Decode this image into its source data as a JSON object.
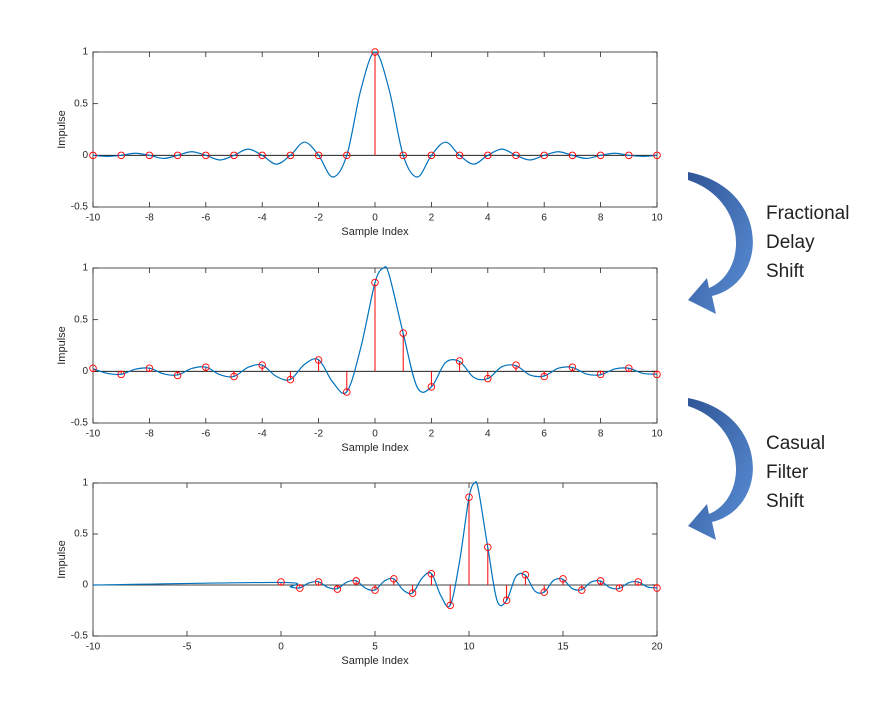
{
  "chart_data": [
    {
      "type": "stem",
      "xlabel": "Sample Index",
      "ylabel": "Impulse",
      "xlim": [
        -10,
        10
      ],
      "ylim": [
        -0.5,
        1
      ],
      "xticks": [
        -10,
        -8,
        -6,
        -4,
        -2,
        0,
        2,
        4,
        6,
        8,
        10
      ],
      "yticks": [
        -0.5,
        0,
        0.5,
        1
      ],
      "series": [
        {
          "type": "stem",
          "color": "#ff0000",
          "x": [
            -10,
            -9,
            -8,
            -7,
            -6,
            -5,
            -4,
            -3,
            -2,
            -1,
            0,
            1,
            2,
            3,
            4,
            5,
            6,
            7,
            8,
            9,
            10
          ],
          "values": [
            0,
            0,
            0,
            0,
            0,
            0,
            0,
            0,
            0,
            0,
            1,
            0,
            0,
            0,
            0,
            0,
            0,
            0,
            0,
            0,
            0
          ]
        },
        {
          "type": "line",
          "color": "#0072bd",
          "x": [
            -10,
            -9.5,
            -9,
            -8.5,
            -8,
            -7.5,
            -7,
            -6.5,
            -6,
            -5.5,
            -5,
            -4.5,
            -4,
            -3.5,
            -3,
            -2.5,
            -2,
            -1.5,
            -1,
            -0.5,
            0,
            0.5,
            1,
            1.5,
            2,
            2.5,
            3,
            3.5,
            4,
            4.5,
            5,
            5.5,
            6,
            6.5,
            7,
            7.5,
            8,
            8.5,
            9,
            9.5,
            10
          ],
          "values": [
            0,
            -0.01,
            0,
            0.02,
            0,
            -0.03,
            0,
            0.035,
            0,
            -0.045,
            0,
            0.06,
            0,
            -0.085,
            0,
            0.127,
            0,
            -0.21,
            0,
            0.637,
            1,
            0.637,
            0,
            -0.21,
            0,
            0.127,
            0,
            -0.085,
            0,
            0.06,
            0,
            -0.045,
            0,
            0.035,
            0,
            -0.03,
            0,
            0.02,
            0,
            -0.01,
            0
          ]
        }
      ]
    },
    {
      "type": "stem",
      "xlabel": "Sample Index",
      "ylabel": "Impulse",
      "xlim": [
        -10,
        10
      ],
      "ylim": [
        -0.5,
        1
      ],
      "xticks": [
        -10,
        -8,
        -6,
        -4,
        -2,
        0,
        2,
        4,
        6,
        8,
        10
      ],
      "yticks": [
        -0.5,
        0,
        0.5,
        1
      ],
      "series": [
        {
          "type": "stem",
          "color": "#ff0000",
          "x": [
            -10,
            -9,
            -8,
            -7,
            -6,
            -5,
            -4,
            -3,
            -2,
            -1,
            0,
            1,
            2,
            3,
            4,
            5,
            6,
            7,
            8,
            9,
            10
          ],
          "values": [
            0.03,
            -0.03,
            0.03,
            -0.04,
            0.04,
            -0.05,
            0.06,
            -0.08,
            0.11,
            -0.2,
            0.86,
            0.37,
            -0.15,
            0.1,
            -0.07,
            0.06,
            -0.05,
            0.04,
            -0.03,
            0.03,
            -0.03
          ]
        },
        {
          "type": "line",
          "color": "#0072bd",
          "x": [
            -10,
            -9.5,
            -9,
            -8.5,
            -8,
            -7.5,
            -7,
            -6.5,
            -6,
            -5.5,
            -5,
            -4.5,
            -4,
            -3.5,
            -3,
            -2.5,
            -2,
            -1.5,
            -1,
            -0.5,
            0,
            0.3,
            0.5,
            1,
            1.5,
            2,
            2.5,
            3,
            3.5,
            4,
            4.5,
            5,
            5.5,
            6,
            6.5,
            7,
            7.5,
            8,
            8.5,
            9,
            9.5,
            10
          ],
          "values": [
            0.025,
            -0.019,
            -0.028,
            0.021,
            0.031,
            -0.024,
            -0.035,
            0.028,
            0.041,
            -0.032,
            -0.049,
            0.039,
            0.06,
            -0.049,
            -0.078,
            0.067,
            0.112,
            -0.104,
            -0.198,
            0.234,
            0.858,
            1,
            0.935,
            0.368,
            -0.156,
            -0.151,
            0.085,
            0.095,
            -0.058,
            -0.07,
            0.045,
            0.055,
            -0.036,
            -0.045,
            0.03,
            0.038,
            -0.026,
            -0.033,
            0.023,
            0.03,
            -0.02,
            -0.027
          ]
        }
      ]
    },
    {
      "type": "stem",
      "xlabel": "Sample Index",
      "ylabel": "Impulse",
      "xlim": [
        -10,
        20
      ],
      "ylim": [
        -0.5,
        1
      ],
      "xticks": [
        -10,
        -5,
        0,
        5,
        10,
        15,
        20
      ],
      "yticks": [
        -0.5,
        0,
        0.5,
        1
      ],
      "series": [
        {
          "type": "stem",
          "color": "#ff0000",
          "x": [
            0,
            1,
            2,
            3,
            4,
            5,
            6,
            7,
            8,
            9,
            10,
            11,
            12,
            13,
            14,
            15,
            16,
            17,
            18,
            19,
            20
          ],
          "values": [
            0.03,
            -0.03,
            0.03,
            -0.04,
            0.04,
            -0.05,
            0.06,
            -0.08,
            0.11,
            -0.2,
            0.86,
            0.37,
            -0.15,
            0.1,
            -0.07,
            0.06,
            -0.05,
            0.04,
            -0.03,
            0.03,
            -0.03
          ]
        },
        {
          "type": "line",
          "color": "#0072bd",
          "x": [
            -10,
            0,
            0.5,
            1,
            1.5,
            2,
            2.5,
            3,
            3.5,
            4,
            4.5,
            5,
            5.5,
            6,
            6.5,
            7,
            7.5,
            8,
            8.5,
            9,
            9.5,
            10,
            10.3,
            10.5,
            11,
            11.5,
            12,
            12.5,
            13,
            13.5,
            14,
            14.5,
            15,
            15.5,
            16,
            16.5,
            17,
            17.5,
            18,
            18.5,
            19,
            19.5,
            20
          ],
          "values": [
            0,
            0.025,
            -0.019,
            -0.028,
            0.021,
            0.031,
            -0.024,
            -0.035,
            0.028,
            0.041,
            -0.032,
            -0.049,
            0.039,
            0.06,
            -0.049,
            -0.078,
            0.067,
            0.112,
            -0.104,
            -0.198,
            0.234,
            0.858,
            1,
            0.935,
            0.368,
            -0.156,
            -0.151,
            0.085,
            0.095,
            -0.058,
            -0.07,
            0.045,
            0.055,
            -0.036,
            -0.045,
            0.03,
            0.038,
            -0.026,
            -0.033,
            0.023,
            0.03,
            -0.02,
            -0.027
          ]
        }
      ]
    }
  ],
  "annotations": [
    {
      "lines": [
        "Fractional",
        "Delay",
        "Shift"
      ]
    },
    {
      "lines": [
        "Casual",
        "Filter",
        "Shift"
      ]
    }
  ]
}
